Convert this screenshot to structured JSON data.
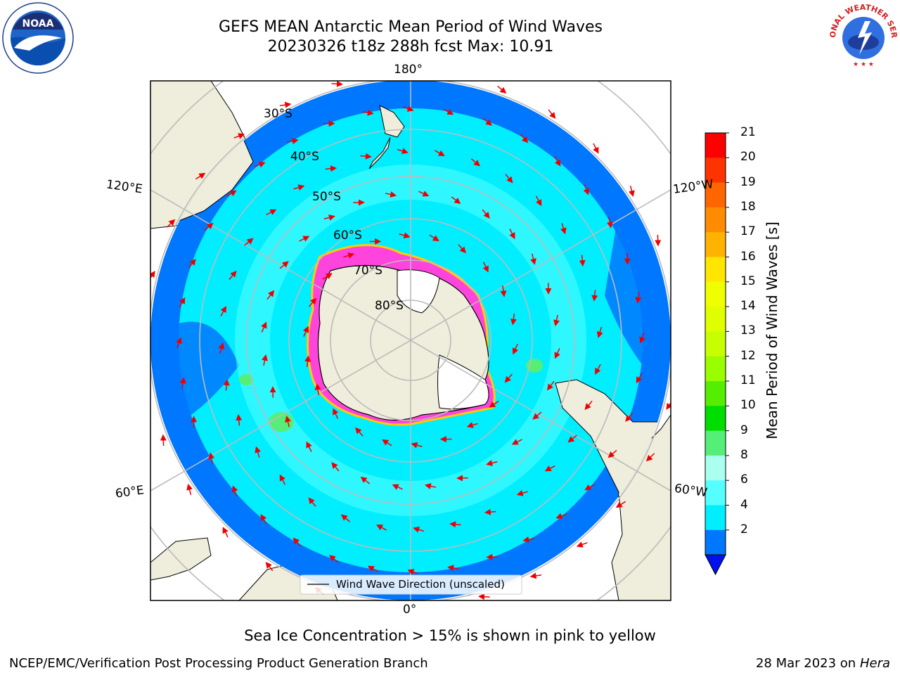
{
  "title": {
    "line1": "GEFS MEAN Antarctic Mean Period of Wind Waves",
    "line2": "20230326 t18z 288h fcst   Max: 10.91"
  },
  "colorbar": {
    "label": "Mean Period of Wind Waves [s]",
    "ticks": [
      "21",
      "20",
      "19",
      "18",
      "17",
      "16",
      "15",
      "14",
      "13",
      "12",
      "11",
      "10",
      "9",
      "8",
      "6",
      "4",
      "2"
    ],
    "colors": [
      "#ff0000",
      "#ff3300",
      "#ff6600",
      "#ff8c00",
      "#ffb300",
      "#ffe600",
      "#f0ff00",
      "#e0ff00",
      "#c8ff00",
      "#99ff00",
      "#55ee00",
      "#00dd00",
      "#55ee77",
      "#aaffee",
      "#55ffff",
      "#00eeff",
      "#0077ff"
    ],
    "under_color": "#0011ee"
  },
  "map": {
    "lon_labels": [
      "180°",
      "0°",
      "120°E",
      "120°W",
      "60°E",
      "60°W"
    ],
    "lat_labels": [
      "30°S",
      "40°S",
      "50°S",
      "60°S",
      "70°S",
      "80°S"
    ],
    "legend": "Wind Wave Direction (unscaled)",
    "colors": {
      "land": "#efeddb",
      "ocean_deep": "#0077ff",
      "ocean_mid": "#00eeff",
      "ocean_light": "#55ffff",
      "ice": "#ff44dd",
      "arrow": "#ee0000",
      "grid": "#bbbbbb"
    }
  },
  "note": "Sea Ice Concentration > 15% is shown in pink to yellow",
  "footer": {
    "left": "NCEP/EMC/Verification Post Processing Product Generation Branch",
    "right_date": "28 Mar 2023 on",
    "right_host": "Hera"
  },
  "logos": {
    "left": "noaa-logo",
    "right": "national-weather-service-logo",
    "right_text": "NATIONAL WEATHER SERVICE"
  }
}
